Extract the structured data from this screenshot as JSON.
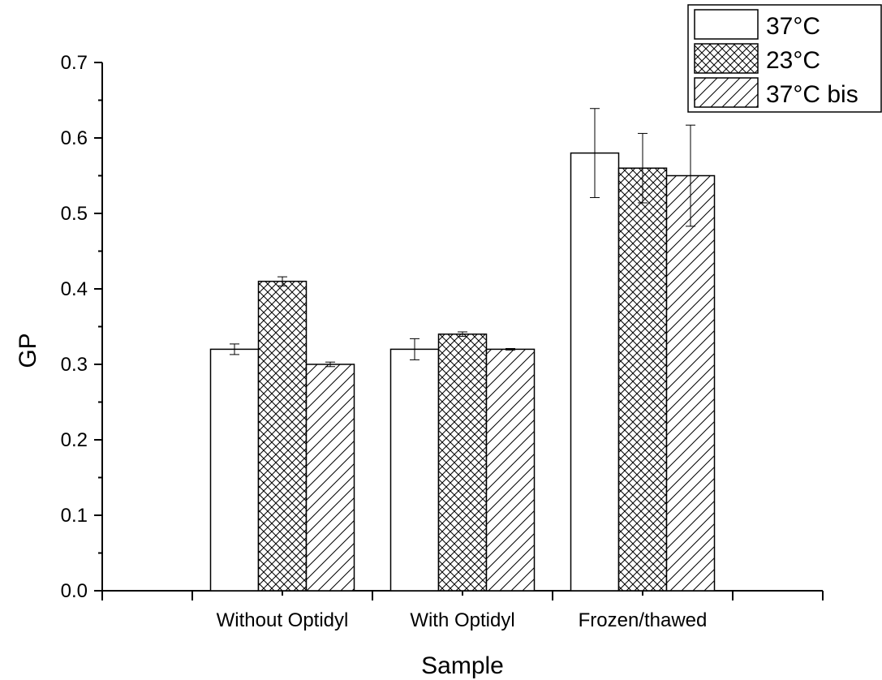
{
  "chart_data": {
    "type": "bar",
    "title": "",
    "xlabel": "Sample",
    "ylabel": "GP",
    "ylim": [
      0,
      0.7
    ],
    "yticks": [
      "0.0",
      "0.1",
      "0.2",
      "0.3",
      "0.4",
      "0.5",
      "0.6",
      "0.7"
    ],
    "categories": [
      "Without Optidyl",
      "With Optidyl",
      "Frozen/thawed"
    ],
    "series": [
      {
        "name": "37°C",
        "pattern": "none",
        "values": [
          0.32,
          0.32,
          0.58
        ],
        "errors": [
          0.007,
          0.014,
          0.059
        ]
      },
      {
        "name": "23°C",
        "pattern": "crosshatch",
        "values": [
          0.41,
          0.34,
          0.56
        ],
        "errors": [
          0.006,
          0.003,
          0.046
        ]
      },
      {
        "name": "37°C bis",
        "pattern": "diagonal",
        "values": [
          0.3,
          0.32,
          0.55
        ],
        "errors": [
          0.003,
          0.001,
          0.067
        ]
      }
    ],
    "legend_position": "top-right",
    "grid": false,
    "colors": {
      "bar_fill": "#ffffff",
      "stroke": "#000000"
    }
  }
}
